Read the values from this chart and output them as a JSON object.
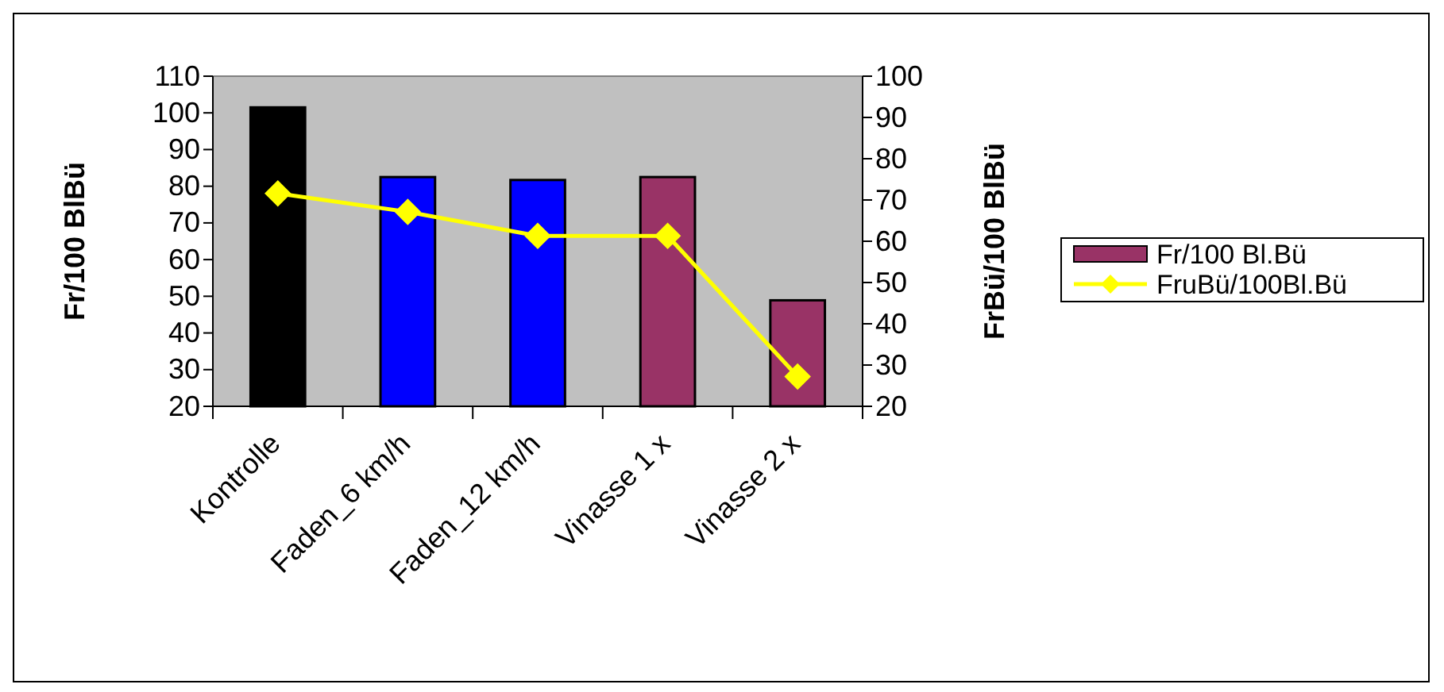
{
  "chart_data": {
    "type": "bar",
    "ylabel": "Fr/100 BlBü",
    "y2label": "FrBü/100 BlBü",
    "categories": [
      "Kontrolle",
      "Faden_6 km/h",
      "Faden_12 km/h",
      "Vinasse 1 x",
      "Vinasse 2 x"
    ],
    "series": [
      {
        "name": "Fr/100 Bl.Bü",
        "color": "#993366",
        "colors": [
          "#000000",
          "#0000ff",
          "#0000ff",
          "#993366",
          "#993366"
        ],
        "values": [
          101.5,
          82.5,
          81.7,
          82.5,
          48.9
        ]
      },
      {
        "name": "FruBü/100Bl.Bü",
        "type": "line",
        "axis": "y2",
        "color": "#ffff00",
        "marker": "diamond",
        "values": [
          71.6,
          67.1,
          61.3,
          61.3,
          27.2
        ]
      }
    ],
    "ylim": [
      20,
      110
    ],
    "yticks": [
      20,
      30,
      40,
      50,
      60,
      70,
      80,
      90,
      100,
      110
    ],
    "y2lim": [
      20,
      100
    ],
    "y2ticks": [
      20,
      30,
      40,
      50,
      60,
      70,
      80,
      90,
      100
    ],
    "grid": false,
    "legend": "right"
  }
}
